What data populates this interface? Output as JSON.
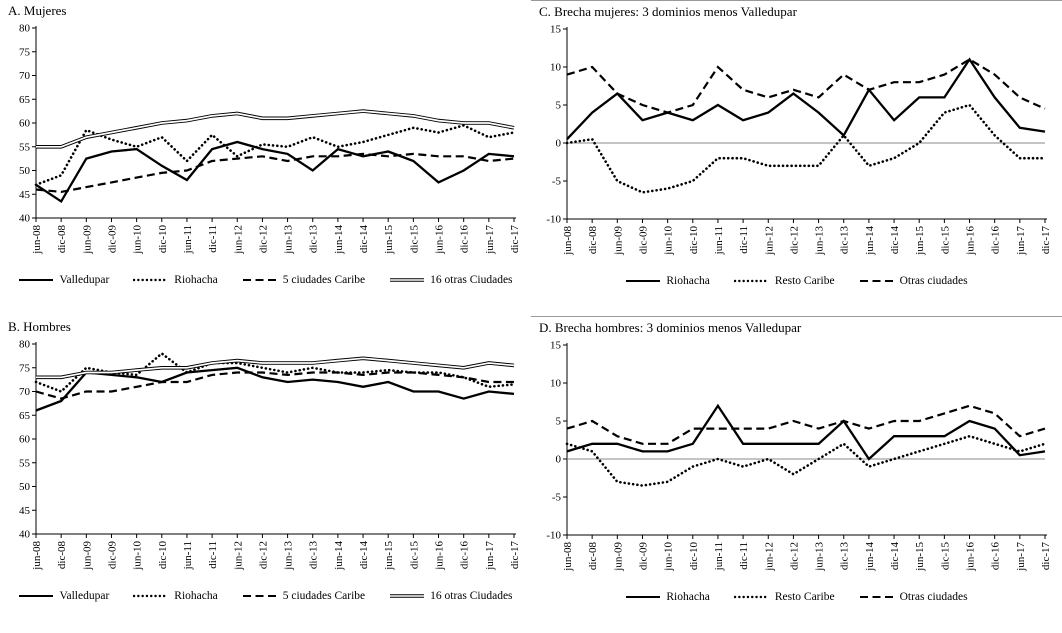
{
  "figure": {
    "description": "Four-panel line chart figure comparing labor indicators for women and men across Colombian city domains",
    "line_color": "#000000",
    "zero_line_color": "#888888",
    "axis_color": "#000000"
  },
  "chart_data": [
    {
      "id": "A",
      "type": "line",
      "title": "A. Mujeres",
      "xlabel": "",
      "ylabel": "",
      "ylim": [
        40,
        80
      ],
      "yticks": [
        40,
        45,
        50,
        55,
        60,
        65,
        70,
        75,
        80
      ],
      "grid": false,
      "zero_line": false,
      "legend_position": "bottom",
      "categories": [
        "jun-08",
        "dic-08",
        "jun-09",
        "dic-09",
        "jun-10",
        "dic-10",
        "jun-11",
        "dic-11",
        "jun-12",
        "dic-12",
        "jun-13",
        "dic-13",
        "jun-14",
        "dic-14",
        "jun-15",
        "dic-15",
        "jun-16",
        "dic-16",
        "jun-17",
        "dic-17"
      ],
      "series": [
        {
          "name": "Valledupar",
          "style": "solid",
          "values": [
            47,
            43.5,
            52.5,
            54,
            54.5,
            51,
            48,
            54.5,
            56,
            54.5,
            53.5,
            50,
            54.5,
            53,
            54,
            52,
            47.5,
            50,
            53.5,
            53
          ]
        },
        {
          "name": "Riohacha",
          "style": "dotted",
          "values": [
            47,
            49,
            58.5,
            56.5,
            55,
            57,
            52,
            57.5,
            53,
            55.5,
            55,
            57,
            55,
            56,
            57.5,
            59,
            58,
            59.5,
            57,
            58
          ]
        },
        {
          "name": "5 ciudades Caribe",
          "style": "dashed",
          "values": [
            46,
            45.5,
            46.5,
            47.5,
            48.5,
            49.5,
            50,
            52,
            52.5,
            53,
            52,
            53,
            53,
            53.5,
            53,
            53.5,
            53,
            53,
            52,
            52.5
          ]
        },
        {
          "name": "16 otras Ciudades",
          "style": "double",
          "values": [
            55,
            55,
            57,
            58,
            59,
            60,
            60.5,
            61.5,
            62,
            61,
            61,
            61.5,
            62,
            62.5,
            62,
            61.5,
            60.5,
            60,
            60,
            59
          ]
        }
      ]
    },
    {
      "id": "C",
      "type": "line",
      "title": "C. Brecha mujeres: 3 dominios menos Valledupar",
      "xlabel": "",
      "ylabel": "",
      "ylim": [
        -10,
        15
      ],
      "yticks": [
        -10,
        -5,
        0,
        5,
        10,
        15
      ],
      "grid": false,
      "zero_line": true,
      "legend_position": "bottom",
      "categories": [
        "jun-08",
        "dic-08",
        "jun-09",
        "dic-09",
        "jun-10",
        "dic-10",
        "jun-11",
        "dic-11",
        "jun-12",
        "dic-12",
        "jun-13",
        "dic-13",
        "jun-14",
        "dic-14",
        "jun-15",
        "dic-15",
        "jun-16",
        "dic-16",
        "jun-17",
        "dic-17"
      ],
      "series": [
        {
          "name": "Riohacha",
          "style": "solid",
          "values": [
            0.5,
            4,
            6.5,
            3,
            4,
            3,
            5,
            3,
            4,
            6.5,
            4,
            1,
            7,
            3,
            6,
            6,
            11,
            6,
            2,
            1.5
          ]
        },
        {
          "name": "Resto Caribe",
          "style": "dotted",
          "values": [
            0,
            0.5,
            -5,
            -6.5,
            -6,
            -5,
            -2,
            -2,
            -3,
            -3,
            -3,
            1,
            -3,
            -2,
            0,
            4,
            5,
            1,
            -2,
            -2
          ]
        },
        {
          "name": "Otras ciudades",
          "style": "dashed",
          "values": [
            9,
            10,
            6.5,
            5,
            4,
            5,
            10,
            7,
            6,
            7,
            6,
            9,
            7,
            8,
            8,
            9,
            11,
            9,
            6,
            4.5
          ]
        }
      ]
    },
    {
      "id": "B",
      "type": "line",
      "title": "B. Hombres",
      "xlabel": "",
      "ylabel": "",
      "ylim": [
        40,
        80
      ],
      "yticks": [
        40,
        45,
        50,
        55,
        60,
        65,
        70,
        75,
        80
      ],
      "grid": false,
      "zero_line": false,
      "legend_position": "bottom",
      "categories": [
        "jun-08",
        "dic-08",
        "jun-09",
        "dic-09",
        "jun-10",
        "dic-10",
        "jun-11",
        "dic-11",
        "jun-12",
        "dic-12",
        "jun-13",
        "dic-13",
        "jun-14",
        "dic-14",
        "jun-15",
        "dic-15",
        "jun-16",
        "dic-16",
        "jun-17",
        "dic-17"
      ],
      "series": [
        {
          "name": "Valledupar",
          "style": "solid",
          "values": [
            66,
            68,
            74,
            73.5,
            73,
            72,
            74,
            74.5,
            75,
            73,
            72,
            72.5,
            72,
            71,
            72,
            70,
            70,
            68.5,
            70,
            69.5
          ]
        },
        {
          "name": "Riohacha",
          "style": "dotted",
          "values": [
            72,
            70,
            75,
            74,
            73.5,
            78,
            74,
            76,
            76,
            75,
            74,
            75,
            74,
            74,
            74.5,
            74,
            74,
            73,
            71,
            71.5
          ]
        },
        {
          "name": "5 ciudades Caribe",
          "style": "dashed",
          "values": [
            70,
            68.5,
            70,
            70,
            71,
            72,
            72,
            73.5,
            74,
            74,
            73.5,
            74,
            74,
            73.5,
            74,
            74,
            73.5,
            73,
            72,
            72
          ]
        },
        {
          "name": "16 otras Ciudades",
          "style": "double",
          "values": [
            73,
            73,
            74,
            74,
            74.5,
            75,
            75,
            76,
            76.5,
            76,
            76,
            76,
            76.5,
            77,
            76.5,
            76,
            75.5,
            75,
            76,
            75.5
          ]
        }
      ]
    },
    {
      "id": "D",
      "type": "line",
      "title": "D. Brecha hombres: 3 dominios menos Valledupar",
      "xlabel": "",
      "ylabel": "",
      "ylim": [
        -10,
        15
      ],
      "yticks": [
        -10,
        -5,
        0,
        5,
        10,
        15
      ],
      "grid": false,
      "zero_line": true,
      "legend_position": "bottom",
      "categories": [
        "jun-08",
        "dic-08",
        "jun-09",
        "dic-09",
        "jun-10",
        "dic-10",
        "jun-11",
        "dic-11",
        "jun-12",
        "dic-12",
        "jun-13",
        "dic-13",
        "jun-14",
        "dic-14",
        "jun-15",
        "dic-15",
        "jun-16",
        "dic-16",
        "jun-17",
        "dic-17"
      ],
      "series": [
        {
          "name": "Riohacha",
          "style": "solid",
          "values": [
            1,
            2,
            2,
            1,
            1,
            2,
            7,
            2,
            2,
            2,
            2,
            5,
            0,
            3,
            3,
            3,
            5,
            4,
            0.5,
            1
          ]
        },
        {
          "name": "Resto Caribe",
          "style": "dotted",
          "values": [
            2,
            1,
            -3,
            -3.5,
            -3,
            -1,
            0,
            -1,
            0,
            -2,
            0,
            2,
            -1,
            0,
            1,
            2,
            3,
            2,
            1,
            2
          ]
        },
        {
          "name": "Otras ciudades",
          "style": "dashed",
          "values": [
            4,
            5,
            3,
            2,
            2,
            4,
            4,
            4,
            4,
            5,
            4,
            5,
            4,
            5,
            5,
            6,
            7,
            6,
            3,
            4
          ]
        }
      ]
    }
  ]
}
